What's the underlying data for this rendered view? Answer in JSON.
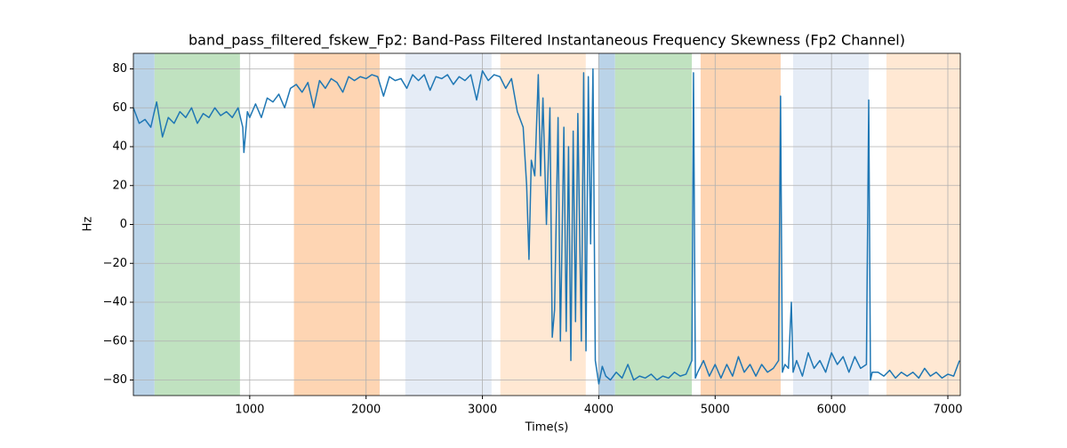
{
  "chart_data": {
    "type": "line",
    "title": "band_pass_filtered_fskew_Fp2: Band-Pass Filtered Instantaneous Frequency Skewness (Fp2 Channel)",
    "xlabel": "Time(s)",
    "ylabel": "Hz",
    "xlim": [
      0,
      7107
    ],
    "ylim": [
      -88,
      88
    ],
    "xticks": [
      1000,
      2000,
      3000,
      4000,
      5000,
      6000,
      7000
    ],
    "yticks": [
      {
        "value": -80,
        "label": "−80"
      },
      {
        "value": -60,
        "label": "−60"
      },
      {
        "value": -40,
        "label": "−40"
      },
      {
        "value": -20,
        "label": "−20"
      },
      0,
      20,
      40,
      60,
      80
    ],
    "grid": true,
    "spans": [
      {
        "start": 0,
        "end": 182,
        "color": "#bad3e8"
      },
      {
        "start": 182,
        "end": 916,
        "color": "#c0e2c0"
      },
      {
        "start": 1380,
        "end": 2117,
        "color": "#fed5b3"
      },
      {
        "start": 2337,
        "end": 3078,
        "color": "#e5ecf6"
      },
      {
        "start": 3154,
        "end": 3888,
        "color": "#ffe8d3"
      },
      {
        "start": 3995,
        "end": 4140,
        "color": "#bad3e8"
      },
      {
        "start": 4140,
        "end": 4800,
        "color": "#c0e2c0"
      },
      {
        "start": 4875,
        "end": 5563,
        "color": "#fed5b3"
      },
      {
        "start": 5670,
        "end": 6320,
        "color": "#e5ecf6"
      },
      {
        "start": 6472,
        "end": 7107,
        "color": "#ffe8d3"
      }
    ],
    "x": [
      0,
      50,
      100,
      150,
      180,
      200,
      250,
      300,
      350,
      400,
      450,
      500,
      550,
      600,
      650,
      700,
      750,
      800,
      850,
      900,
      940,
      950,
      980,
      1000,
      1050,
      1100,
      1150,
      1200,
      1250,
      1300,
      1350,
      1400,
      1450,
      1500,
      1550,
      1600,
      1650,
      1700,
      1750,
      1800,
      1850,
      1900,
      1950,
      2000,
      2050,
      2100,
      2150,
      2200,
      2250,
      2300,
      2350,
      2400,
      2450,
      2500,
      2550,
      2600,
      2650,
      2700,
      2750,
      2800,
      2850,
      2900,
      2950,
      3000,
      3050,
      3100,
      3150,
      3200,
      3250,
      3300,
      3350,
      3380,
      3400,
      3420,
      3450,
      3480,
      3500,
      3520,
      3550,
      3580,
      3600,
      3620,
      3650,
      3670,
      3700,
      3720,
      3740,
      3760,
      3780,
      3800,
      3820,
      3850,
      3870,
      3890,
      3910,
      3930,
      3950,
      3970,
      4000,
      4030,
      4060,
      4100,
      4150,
      4200,
      4250,
      4300,
      4350,
      4400,
      4450,
      4500,
      4550,
      4600,
      4650,
      4700,
      4750,
      4800,
      4814,
      4830,
      4850,
      4900,
      4950,
      5000,
      5050,
      5100,
      5150,
      5200,
      5250,
      5300,
      5350,
      5400,
      5450,
      5500,
      5545,
      5562,
      5578,
      5600,
      5630,
      5655,
      5670,
      5700,
      5750,
      5800,
      5850,
      5900,
      5950,
      6000,
      6050,
      6100,
      6150,
      6200,
      6250,
      6300,
      6320,
      6335,
      6350,
      6400,
      6450,
      6500,
      6550,
      6600,
      6650,
      6700,
      6750,
      6800,
      6850,
      6900,
      6950,
      7000,
      7050,
      7100
    ],
    "series": [
      {
        "name": "band_pass_filtered_fskew_Fp2",
        "color": "#1f77b4",
        "values": [
          60,
          52,
          54,
          50,
          58,
          63,
          45,
          55,
          52,
          58,
          55,
          60,
          52,
          57,
          55,
          60,
          56,
          58,
          55,
          60,
          50,
          37,
          58,
          55,
          62,
          55,
          65,
          63,
          67,
          60,
          70,
          72,
          68,
          73,
          60,
          74,
          70,
          75,
          73,
          68,
          76,
          74,
          76,
          75,
          77,
          76,
          66,
          76,
          74,
          75,
          70,
          77,
          74,
          77,
          69,
          76,
          75,
          77,
          72,
          76,
          74,
          77,
          64,
          79,
          74,
          77,
          76,
          70,
          75,
          58,
          50,
          20,
          -18,
          33,
          25,
          77,
          25,
          65,
          0,
          60,
          -58,
          -44,
          55,
          -60,
          50,
          -55,
          40,
          -70,
          48,
          -50,
          57,
          -60,
          78,
          -65,
          76,
          -10,
          80,
          -70,
          -82,
          -73,
          -78,
          -80,
          -76,
          -79,
          -72,
          -80,
          -78,
          -79,
          -77,
          -80,
          -78,
          -79,
          -76,
          -78,
          -77,
          -70,
          78,
          -79,
          -76,
          -70,
          -78,
          -72,
          -79,
          -72,
          -78,
          -68,
          -76,
          -72,
          -78,
          -72,
          -76,
          -74,
          -70,
          66,
          -76,
          -72,
          -74,
          -40,
          -76,
          -70,
          -78,
          -66,
          -74,
          -70,
          -76,
          -66,
          -72,
          -68,
          -76,
          -68,
          -74,
          -72,
          64,
          -80,
          -76,
          -76,
          -78,
          -75,
          -79,
          -76,
          -78,
          -76,
          -79,
          -74,
          -78,
          -76,
          -79,
          -77,
          -78,
          -70
        ]
      }
    ]
  }
}
